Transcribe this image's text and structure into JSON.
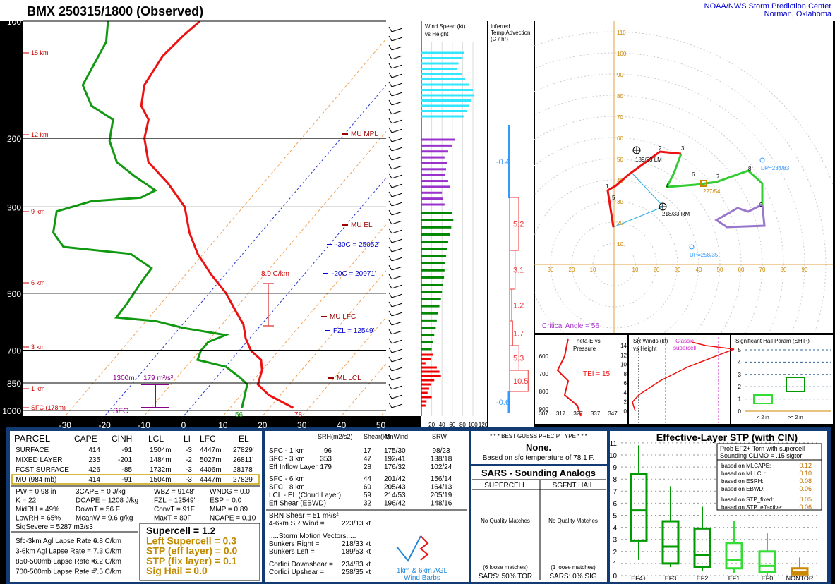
{
  "header": {
    "title": "BMX   250315/1800  (Observed)",
    "org": "NOAA/NWS Storm Prediction Center",
    "location": "Norman, Oklahoma"
  },
  "skewt": {
    "pressure_ticks": [
      100,
      200,
      300,
      500,
      700,
      850,
      1000
    ],
    "temp_ticks": [
      -30,
      -20,
      -10,
      0,
      10,
      20,
      30,
      40,
      50
    ],
    "temperature": {
      "p": [
        984,
        912,
        857,
        788,
        741,
        702,
        653,
        601,
        553,
        500,
        449,
        396,
        349,
        300,
        261,
        230,
        200,
        179,
        165,
        146,
        123,
        109,
        100
      ],
      "t": [
        26,
        17,
        12,
        10,
        7.5,
        3,
        -1,
        -4.6,
        -9.7,
        -15.7,
        -23.3,
        -31.4,
        -38.1,
        -44.8,
        -54.1,
        -63.7,
        -69.8,
        -72.8,
        -77.6,
        -81.3,
        -82.9,
        -82.1,
        -81
      ]
    },
    "dewpoint": {
      "p": [
        984,
        857,
        822,
        772,
        741,
        702,
        667,
        640,
        614,
        589,
        577,
        531,
        468,
        431,
        396,
        380,
        349,
        308,
        290,
        284,
        272,
        250,
        230,
        203,
        179,
        165,
        146,
        113,
        100
      ],
      "t": [
        13,
        9.3,
        5.9,
        0.1,
        -8.6,
        -9.7,
        -9.7,
        -6.8,
        -19,
        -27.7,
        -38.3,
        -38.6,
        -39.6,
        -40,
        -48.4,
        -66.9,
        -72.6,
        -76.3,
        -69.6,
        -57.9,
        -55.8,
        -64.2,
        -71.7,
        -78.1,
        -81.8,
        -90.2,
        -96.9,
        -100.3,
        -104.3
      ]
    },
    "height_labels": [
      "15 km",
      "12 km",
      "9 km",
      "6 km",
      "3 km",
      "1 km",
      "SFC (178m)"
    ],
    "levels": [
      "MU  MPL",
      "MU  EL",
      "MU  LFC",
      "ML  LCL"
    ],
    "heights_text": [
      "-30C = 25052'",
      "-20C = 20971'",
      "FZL = 12549'"
    ],
    "lapse": "8.0 C/km",
    "eff_base": "1300m",
    "eff_srh": "179 m²/s²",
    "sfc": "SFC",
    "sfc_td": "56",
    "sfc_t": "78"
  },
  "wind_speed": {
    "title": [
      "Wind Speed (kt)",
      "vs Height"
    ],
    "xticks": [
      20,
      40,
      60,
      80,
      100,
      120
    ],
    "groups": [
      {
        "color": "#33e6ff",
        "values": [
          83,
          80,
          72,
          70,
          78,
          85,
          92,
          100,
          103,
          96,
          93,
          88,
          82
        ]
      },
      {
        "color": "#9933cc",
        "values": [
          65,
          60,
          52,
          45,
          50,
          48,
          46,
          52,
          55,
          40,
          42,
          45
        ]
      },
      {
        "color": "#008800",
        "values": [
          60,
          62,
          58,
          55,
          52,
          50,
          48,
          46,
          45,
          44,
          42,
          40,
          38,
          35,
          32,
          30,
          28,
          25,
          22,
          20
        ]
      },
      {
        "color": "#ee0000",
        "values": [
          22,
          18,
          8,
          30,
          35,
          38,
          25,
          18,
          15,
          12,
          20,
          10,
          8
        ]
      }
    ]
  },
  "temp_advection": {
    "title": [
      "Inferred",
      "Temp Advection",
      "(C / hr)"
    ],
    "values": [
      -0.4,
      5.2,
      3.1,
      1.2,
      1.7,
      5.3,
      10.5,
      -0.6
    ]
  },
  "hodograph": {
    "rings": [
      10,
      20,
      30,
      40,
      50,
      60,
      70,
      80,
      90,
      100,
      110
    ],
    "xticks": [
      10,
      20,
      30,
      40,
      50,
      60,
      70,
      80,
      90
    ],
    "points": [
      1,
      2,
      3,
      4,
      5,
      6,
      7,
      8,
      9
    ],
    "lm": "189/53 LM",
    "rm": "218/33 RM",
    "dp": "DP=234/83",
    "up": "UP=258/35",
    "mean": "227/54",
    "critical_angle": "Critical Angle = 56"
  },
  "theta_e": {
    "title": [
      "Theta-E vs",
      "Pressure"
    ],
    "tei": "TEI = 15",
    "xticks": [
      307,
      317,
      327,
      337,
      347
    ],
    "yticks": [
      600,
      700,
      800,
      900
    ]
  },
  "sr_winds": {
    "title": [
      "SR Winds (kt)",
      "vs Height"
    ],
    "note": [
      "Classic",
      "supercell"
    ],
    "yticks": [
      0,
      2,
      4,
      6,
      8,
      10,
      12,
      14
    ]
  },
  "ship": {
    "title": "Significant Hail Param (SHIP)",
    "yticks": [
      0,
      1,
      2,
      3,
      4,
      5
    ],
    "categories": [
      "< 2 in",
      ">= 2 in"
    ]
  },
  "parcel": {
    "header": [
      "PARCEL",
      "CAPE",
      "CINH",
      "LCL",
      "LI",
      "LFC",
      "EL"
    ],
    "rows": [
      [
        "SURFACE",
        "414",
        "-91",
        "1504m",
        "-3",
        "4447m",
        "27829'"
      ],
      [
        "MIXED LAYER",
        "235",
        "-201",
        "1484m",
        "-2",
        "5027m",
        "26811'"
      ],
      [
        "FCST SURFACE",
        "426",
        "-85",
        "1732m",
        "-3",
        "4406m",
        "28178'"
      ],
      [
        "MU  (984 mb)",
        "414",
        "-91",
        "1504m",
        "-3",
        "4447m",
        "27829'"
      ]
    ],
    "indices": [
      [
        "PW = 0.98 in",
        "3CAPE = 0 J/kg",
        "WBZ = 9148'",
        "WNDG = 0.0"
      ],
      [
        "K = 22",
        "DCAPE = 1208 J/kg",
        "FZL = 12549'",
        "ESP = 0.0"
      ],
      [
        "MidRH = 49%",
        "DownT = 56 F",
        "ConvT = 91F",
        "MMP = 0.89"
      ],
      [
        "LowRH = 65%",
        "MeanW = 9.6 g/kg",
        "MaxT = 80F",
        "NCAPE = 0.10"
      ],
      [
        "SigSevere = 5287 m3/s3"
      ]
    ],
    "lapse_rates": [
      [
        "Sfc-3km Agl Lapse Rate =",
        "6.8 C/km"
      ],
      [
        "3-6km Agl Lapse Rate =",
        "7.3 C/km"
      ],
      [
        "850-500mb Lapse Rate =",
        "6.2 C/km"
      ],
      [
        "700-500mb Lapse Rate =",
        "7.5 C/km"
      ]
    ],
    "composite": [
      "Supercell = 1.2",
      "Left Supercell = 0.3",
      "STP (eff layer) = 0.0",
      "STP (fix layer) = 0.1",
      "Sig Hail = 0.0"
    ]
  },
  "shear": {
    "header": [
      "SRH(m2/s2)",
      "Shear(kt)",
      "MnWind",
      "SRW"
    ],
    "rows": [
      [
        "SFC - 1 km",
        "96",
        "17",
        "175/30",
        "98/23"
      ],
      [
        "SFC - 3 km",
        "353",
        "47",
        "192/41",
        "138/18"
      ],
      [
        "Eff Inflow Layer",
        "179",
        "28",
        "176/32",
        "102/24"
      ]
    ],
    "rows2": [
      [
        "SFC - 6 km",
        "44",
        "201/42",
        "156/14"
      ],
      [
        "SFC - 8 km",
        "69",
        "205/43",
        "164/13"
      ],
      [
        "LCL - EL (Cloud Layer)",
        "59",
        "214/53",
        "205/19"
      ],
      [
        "Eff Shear (EBWD)",
        "32",
        "196/42",
        "148/16"
      ]
    ],
    "brn": "BRN Shear = 51 m²/s²",
    "sr46": [
      "4-6km SR Wind =",
      "223/13 kt"
    ],
    "motion_title": ".....Storm Motion Vectors.....",
    "motion": [
      [
        "Bunkers Right =",
        "218/33 kt"
      ],
      [
        "Bunkers Left =",
        "189/53 kt"
      ],
      [
        "Corfidi Downshear =",
        "234/83 kt"
      ],
      [
        "Corfidi Upshear =",
        "258/35 kt"
      ]
    ],
    "barbs_label": [
      "1km & 6km AGL",
      "Wind Barbs"
    ]
  },
  "precip": {
    "title": "* * * BEST GUESS PRECIP TYPE * * *",
    "type": "None.",
    "note": "Based on sfc temperature of 78.1 F."
  },
  "sars": {
    "title": "SARS - Sounding Analogs",
    "columns": [
      "SUPERCELL",
      "SGFNT HAIL"
    ],
    "quality": [
      "No Quality Matches",
      "No Quality Matches"
    ],
    "loose": [
      "(6 loose matches)",
      "(1 loose matches)"
    ],
    "result": [
      "SARS:  50% TOR",
      "SARS:  0% SIG"
    ]
  },
  "stp": {
    "title": "Effective-Layer STP (with CIN)",
    "yticks": [
      0,
      1,
      2,
      3,
      4,
      5,
      6,
      7,
      8,
      9,
      10,
      11
    ],
    "categories": [
      "EF4+",
      "EF3",
      "EF2",
      "EF1",
      "EF0",
      "NONTOR"
    ],
    "colors": [
      "#009900",
      "#009900",
      "#009900",
      "#33dd33",
      "#33dd33",
      "#cc8800"
    ],
    "low": [
      1.3,
      0.7,
      0.4,
      0.2,
      0,
      0
    ],
    "q1": [
      2.9,
      1,
      0.7,
      0.6,
      0.3,
      0.1
    ],
    "median": [
      5.4,
      2.4,
      1.7,
      1.3,
      0.8,
      0.3
    ],
    "q3": [
      8.4,
      4.5,
      3.9,
      2.7,
      2,
      0.6
    ],
    "high": [
      10.8,
      7.4,
      5.7,
      4.5,
      3.5,
      1.5
    ],
    "prob_title": [
      "Prob EF2+ Torn with supercell",
      "Sounding CLIMO = .15 sigtor"
    ],
    "prob": [
      [
        "based on MLCAPE:",
        "0.12"
      ],
      [
        "based on MLLCL:",
        "0.10"
      ],
      [
        "based on ESRH:",
        "0.08"
      ],
      [
        "based on EBWD:",
        "0.06"
      ],
      [
        "based on STP_fixed:",
        "0.05"
      ],
      [
        "based on STP_effective:",
        "0.06"
      ]
    ]
  }
}
